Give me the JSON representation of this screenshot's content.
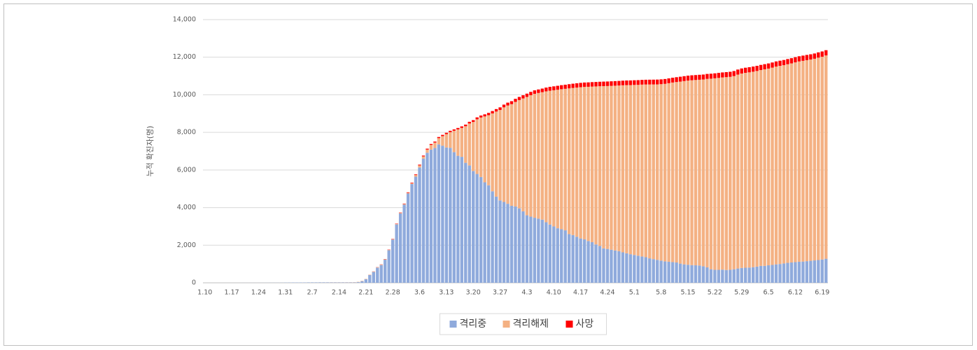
{
  "chart_data": {
    "type": "stacked_bar",
    "y_label": "누적 확진자(명)",
    "categories": [
      "1.10",
      null,
      null,
      null,
      null,
      null,
      null,
      "1.17",
      null,
      null,
      null,
      null,
      null,
      null,
      "1.24",
      null,
      null,
      null,
      null,
      null,
      null,
      "1.31",
      null,
      null,
      null,
      null,
      null,
      null,
      "2.7",
      null,
      null,
      null,
      null,
      null,
      null,
      "2.14",
      null,
      null,
      null,
      null,
      null,
      null,
      "2.21",
      null,
      null,
      null,
      null,
      null,
      null,
      "2.28",
      null,
      null,
      null,
      null,
      null,
      null,
      "3.6",
      null,
      null,
      null,
      null,
      null,
      null,
      "3.13",
      null,
      null,
      null,
      null,
      null,
      null,
      "3.20",
      null,
      null,
      null,
      null,
      null,
      null,
      "3.27",
      null,
      null,
      null,
      null,
      null,
      null,
      "4.3",
      null,
      null,
      null,
      null,
      null,
      null,
      "4.10",
      null,
      null,
      null,
      null,
      null,
      null,
      "4.17",
      null,
      null,
      null,
      null,
      null,
      null,
      "4.24",
      null,
      null,
      null,
      null,
      null,
      null,
      "5.1",
      null,
      null,
      null,
      null,
      null,
      null,
      "5.8",
      null,
      null,
      null,
      null,
      null,
      null,
      "5.15",
      null,
      null,
      null,
      null,
      null,
      null,
      "5.22",
      null,
      null,
      null,
      null,
      null,
      null,
      "5.29",
      null,
      null,
      null,
      null,
      null,
      null,
      "6.5",
      null,
      null,
      null,
      null,
      null,
      null,
      "6.12",
      null,
      null,
      null,
      null,
      null,
      null,
      "6.19",
      null
    ],
    "series": [
      {
        "name": "격리중",
        "color": "#8faadc",
        "values": [
          0,
          0,
          0,
          0,
          0,
          0,
          0,
          0,
          0,
          0,
          1,
          1,
          1,
          1,
          2,
          2,
          3,
          4,
          4,
          4,
          6,
          11,
          12,
          15,
          15,
          16,
          18,
          21,
          22,
          22,
          24,
          24,
          24,
          21,
          21,
          21,
          21,
          20,
          20,
          19,
          35,
          87,
          186,
          415,
          578,
          807,
          945,
          1227,
          1731,
          2299,
          3106,
          3686,
          4160,
          4750,
          5255,
          5643,
          6134,
          6605,
          6918,
          7084,
          7171,
          7362,
          7293,
          7198,
          7180,
          6950,
          6754,
          6699,
          6382,
          6241,
          5946,
          5788,
          5627,
          5343,
          5187,
          4867,
          4582,
          4382,
          4301,
          4203,
          4095,
          4057,
          3960,
          3800,
          3590,
          3520,
          3460,
          3410,
          3360,
          3220,
          3100,
          3000,
          2900,
          2850,
          2790,
          2590,
          2540,
          2450,
          2360,
          2310,
          2220,
          2160,
          2040,
          1960,
          1830,
          1800,
          1760,
          1720,
          1680,
          1620,
          1570,
          1520,
          1480,
          1440,
          1400,
          1360,
          1300,
          1260,
          1220,
          1180,
          1140,
          1120,
          1100,
          1080,
          1020,
          980,
          960,
          940,
          930,
          920,
          880,
          820,
          720,
          690,
          690,
          700,
          680,
          690,
          720,
          760,
          790,
          800,
          810,
          830,
          860,
          900,
          900,
          930,
          950,
          980,
          1000,
          1030,
          1060,
          1080,
          1100,
          1120,
          1130,
          1150,
          1170,
          1190,
          1210,
          1240,
          1280
        ]
      },
      {
        "name": "격리해제",
        "color": "#f4b183",
        "values": [
          0,
          0,
          0,
          0,
          0,
          0,
          0,
          0,
          0,
          0,
          0,
          0,
          0,
          0,
          0,
          0,
          0,
          0,
          0,
          0,
          0,
          0,
          0,
          0,
          0,
          0,
          1,
          2,
          2,
          2,
          3,
          3,
          4,
          7,
          7,
          7,
          7,
          9,
          10,
          12,
          16,
          16,
          16,
          16,
          18,
          18,
          22,
          22,
          22,
          22,
          27,
          30,
          30,
          34,
          41,
          88,
          108,
          118,
          166,
          247,
          288,
          333,
          510,
          714,
          834,
          1137,
          1407,
          1540,
          1947,
          2233,
          2612,
          2909,
          3166,
          3507,
          3730,
          4144,
          4528,
          4811,
          5033,
          5228,
          5408,
          5567,
          5762,
          6007,
          6298,
          6459,
          6594,
          6688,
          6779,
          6964,
          7119,
          7242,
          7369,
          7448,
          7530,
          7752,
          7826,
          7934,
          8045,
          8111,
          8207,
          8278,
          8406,
          8496,
          8632,
          8668,
          8716,
          8765,
          8814,
          8888,
          8945,
          8998,
          9046,
          9090,
          9143,
          9189,
          9250,
          9291,
          9334,
          9386,
          9444,
          9498,
          9553,
          9598,
          9683,
          9751,
          9798,
          9835,
          9858,
          9882,
          9935,
          10027,
          10138,
          10188,
          10209,
          10224,
          10259,
          10266,
          10276,
          10315,
          10342,
          10369,
          10385,
          10400,
          10408,
          10417,
          10456,
          10465,
          10496,
          10523,
          10541,
          10546,
          10566,
          10591,
          10626,
          10654,
          10678,
          10694,
          10707,
          10729,
          10767,
          10786,
          10813
        ]
      },
      {
        "name": "사망",
        "color": "#ff0000",
        "values": [
          0,
          0,
          0,
          0,
          0,
          0,
          0,
          0,
          0,
          0,
          0,
          0,
          0,
          0,
          0,
          0,
          0,
          0,
          0,
          0,
          0,
          0,
          0,
          0,
          0,
          0,
          0,
          0,
          0,
          0,
          0,
          0,
          0,
          0,
          0,
          0,
          0,
          0,
          0,
          0,
          0,
          1,
          2,
          2,
          6,
          8,
          10,
          12,
          13,
          16,
          17,
          20,
          22,
          28,
          32,
          35,
          42,
          44,
          50,
          51,
          54,
          60,
          66,
          67,
          72,
          75,
          75,
          81,
          84,
          91,
          94,
          102,
          104,
          111,
          120,
          126,
          131,
          139,
          144,
          152,
          158,
          162,
          165,
          169,
          174,
          177,
          183,
          186,
          192,
          200,
          204,
          208,
          211,
          214,
          217,
          222,
          225,
          229,
          230,
          232,
          234,
          236,
          237,
          238,
          240,
          240,
          242,
          243,
          244,
          244,
          246,
          247,
          248,
          250,
          250,
          252,
          254,
          255,
          256,
          256,
          256,
          256,
          256,
          258,
          259,
          260,
          260,
          262,
          262,
          263,
          263,
          263,
          264,
          264,
          266,
          266,
          267,
          269,
          269,
          269,
          270,
          272,
          273,
          273,
          273,
          273,
          273,
          273,
          273,
          273,
          273,
          276,
          276,
          276,
          277,
          277,
          277,
          277,
          278,
          279,
          280,
          280,
          280
        ]
      }
    ],
    "ylim": [
      0,
      14000
    ],
    "yticks": [
      0,
      {
        "value": 2000,
        "label": "2,000"
      },
      {
        "value": 4000,
        "label": "4,000"
      },
      {
        "value": 6000,
        "label": "6,000"
      },
      {
        "value": 8000,
        "label": "8,000"
      },
      {
        "value": 10000,
        "label": "10,000"
      },
      {
        "value": 12000,
        "label": "12,000"
      },
      {
        "value": 14000,
        "label": "14,000"
      }
    ],
    "grid": true,
    "legend": "bottom"
  }
}
